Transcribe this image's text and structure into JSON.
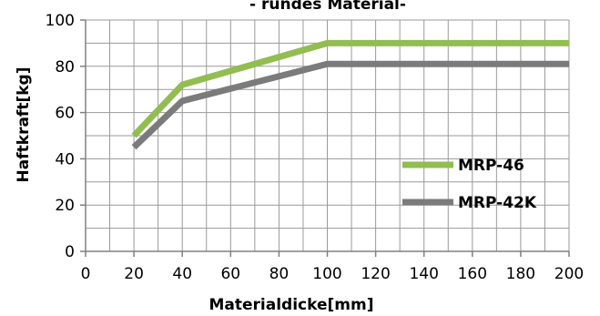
{
  "chart_data": {
    "type": "line",
    "title": "- rundes Material-",
    "xlabel": "Materialdicke[mm]",
    "ylabel": "Haftkraft[kg]",
    "xlim": [
      0,
      200
    ],
    "ylim": [
      0,
      100
    ],
    "xticks": [
      0,
      20,
      40,
      60,
      80,
      100,
      120,
      140,
      160,
      180,
      200
    ],
    "yticks": [
      0,
      20,
      40,
      60,
      80,
      100
    ],
    "grid": true,
    "legend_position": "right",
    "series": [
      {
        "name": "MRP-46",
        "color": "#92bd51",
        "x": [
          20,
          40,
          100,
          200
        ],
        "y": [
          50,
          72,
          90,
          90
        ]
      },
      {
        "name": "MRP-42K",
        "color": "#7b7b7b",
        "x": [
          20,
          40,
          100,
          200
        ],
        "y": [
          45,
          65,
          81,
          81
        ]
      }
    ]
  }
}
